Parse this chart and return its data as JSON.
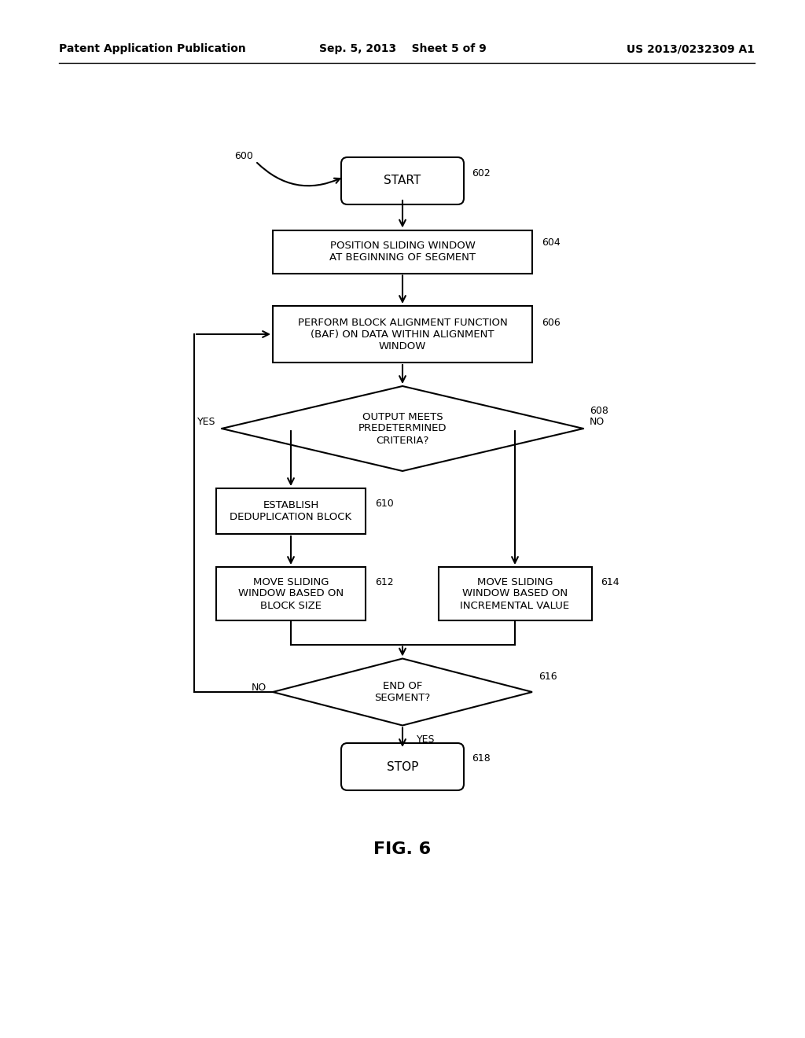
{
  "bg_color": "#ffffff",
  "line_color": "#000000",
  "text_color": "#000000",
  "header_left": "Patent Application Publication",
  "header_center": "Sep. 5, 2013    Sheet 5 of 9",
  "header_right": "US 2013/0232309 A1",
  "fig_label": "FIG. 6",
  "label_600": "600",
  "ref_602": "602",
  "ref_604": "604",
  "ref_606": "606",
  "ref_608": "608",
  "ref_610": "610",
  "ref_612": "612",
  "ref_614": "614",
  "ref_616": "616",
  "ref_618": "618",
  "label_start": "START",
  "label_stop": "STOP",
  "label_604": "POSITION SLIDING WINDOW\nAT BEGINNING OF SEGMENT",
  "label_606": "PERFORM BLOCK ALIGNMENT FUNCTION\n(BAF) ON DATA WITHIN ALIGNMENT\nWINDOW",
  "label_608": "OUTPUT MEETS\nPREDETERMINED\nCRITERIA?",
  "label_610": "ESTABLISH\nDEDUPLICATION BLOCK",
  "label_612": "MOVE SLIDING\nWINDOW BASED ON\nBLOCK SIZE",
  "label_614": "MOVE SLIDING\nWINDOW BASED ON\nINCREMENTAL VALUE",
  "label_616": "END OF\nSEGMENT?",
  "label_yes1": "YES",
  "label_no1": "NO",
  "label_no2": "NO",
  "label_yes2": "YES"
}
